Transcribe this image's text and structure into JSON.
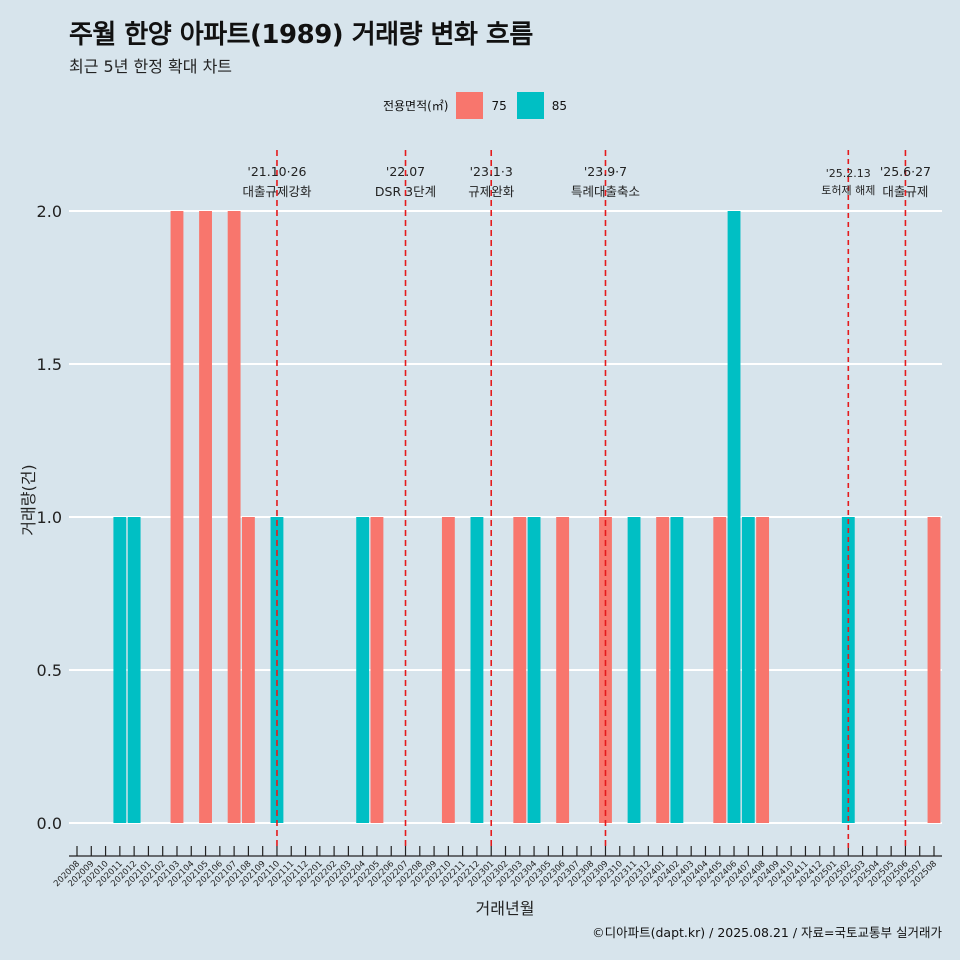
{
  "title": "주월 한양 아파트(1989) 거래량 변화 흐름",
  "subtitle": "최근 5년 한정 확대 차트",
  "legend": {
    "title": "전용면적(㎡)",
    "items": [
      {
        "label": "75",
        "color": "#f8766d"
      },
      {
        "label": "85",
        "color": "#00bfc4"
      }
    ]
  },
  "caption": "©디아파트(dapt.kr) / 2025.08.21 / 자료=국토교통부 실거래가",
  "chart_data": {
    "type": "bar",
    "xlabel": "거래년월",
    "ylabel": "거래량(건)",
    "ylim": [
      0,
      2
    ],
    "yticks": [
      "0.0",
      "0.5",
      "1.0",
      "1.5",
      "2.0"
    ],
    "grid": true,
    "legend_position": "top",
    "categories": [
      "202008",
      "202009",
      "202010",
      "202011",
      "202012",
      "202101",
      "202102",
      "202103",
      "202104",
      "202105",
      "202106",
      "202107",
      "202108",
      "202109",
      "202110",
      "202111",
      "202112",
      "202201",
      "202202",
      "202203",
      "202204",
      "202205",
      "202206",
      "202207",
      "202208",
      "202209",
      "202210",
      "202211",
      "202212",
      "202301",
      "202302",
      "202303",
      "202304",
      "202305",
      "202306",
      "202307",
      "202308",
      "202309",
      "202310",
      "202311",
      "202312",
      "202401",
      "202402",
      "202403",
      "202404",
      "202405",
      "202406",
      "202407",
      "202408",
      "202409",
      "202410",
      "202411",
      "202412",
      "202501",
      "202502",
      "202503",
      "202504",
      "202505",
      "202506",
      "202507",
      "202508"
    ],
    "bars": [
      {
        "x": "202011",
        "series": "85",
        "value": 1
      },
      {
        "x": "202012",
        "series": "85",
        "value": 1
      },
      {
        "x": "202103",
        "series": "75",
        "value": 2
      },
      {
        "x": "202105",
        "series": "75",
        "value": 2
      },
      {
        "x": "202107",
        "series": "75",
        "value": 2
      },
      {
        "x": "202108",
        "series": "75",
        "value": 1
      },
      {
        "x": "202110",
        "series": "85",
        "value": 1
      },
      {
        "x": "202204",
        "series": "85",
        "value": 1
      },
      {
        "x": "202205",
        "series": "75",
        "value": 1
      },
      {
        "x": "202210",
        "series": "75",
        "value": 1
      },
      {
        "x": "202212",
        "series": "85",
        "value": 1
      },
      {
        "x": "202303",
        "series": "75",
        "value": 1
      },
      {
        "x": "202304",
        "series": "85",
        "value": 1
      },
      {
        "x": "202306",
        "series": "75",
        "value": 1
      },
      {
        "x": "202309",
        "series": "75",
        "value": 1
      },
      {
        "x": "202311",
        "series": "85",
        "value": 1
      },
      {
        "x": "202401",
        "series": "75",
        "value": 1
      },
      {
        "x": "202402",
        "series": "85",
        "value": 1
      },
      {
        "x": "202405",
        "series": "75",
        "value": 1
      },
      {
        "x": "202406",
        "series": "85",
        "value": 2
      },
      {
        "x": "202407",
        "series": "85",
        "value": 1
      },
      {
        "x": "202408",
        "series": "75",
        "value": 1
      },
      {
        "x": "202502",
        "series": "85",
        "value": 1
      },
      {
        "x": "202508",
        "series": "75",
        "value": 1
      }
    ],
    "annotations": [
      {
        "x": "202110",
        "date": "'21.10·26",
        "label": "대출규제강화",
        "size": "normal"
      },
      {
        "x": "202207",
        "date": "'22.07",
        "label": "DSR 3단계",
        "size": "normal"
      },
      {
        "x": "202301",
        "date": "'23.1·3",
        "label": "규제완화",
        "size": "normal"
      },
      {
        "x": "202309",
        "date": "'23.9·7",
        "label": "특례대출축소",
        "size": "normal"
      },
      {
        "x": "202502",
        "date": "'25.2.13",
        "label": "토허제 해제",
        "size": "small"
      },
      {
        "x": "202506",
        "date": "'25.6·27",
        "label": "대출규제",
        "size": "normal"
      }
    ]
  }
}
